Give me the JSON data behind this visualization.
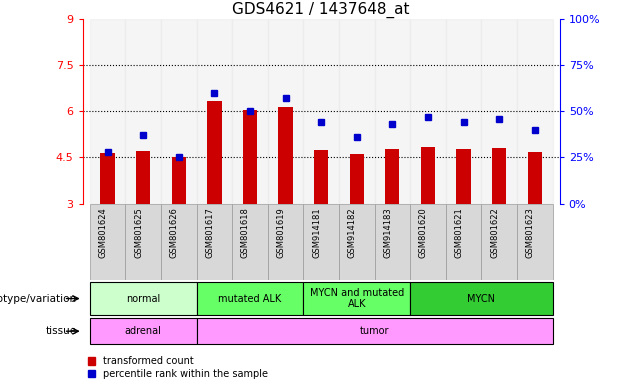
{
  "title": "GDS4621 / 1437648_at",
  "samples": [
    "GSM801624",
    "GSM801625",
    "GSM801626",
    "GSM801617",
    "GSM801618",
    "GSM801619",
    "GSM914181",
    "GSM914182",
    "GSM914183",
    "GSM801620",
    "GSM801621",
    "GSM801622",
    "GSM801623"
  ],
  "bar_values": [
    4.65,
    4.72,
    4.52,
    6.35,
    6.05,
    6.15,
    4.75,
    4.62,
    4.78,
    4.85,
    4.78,
    4.82,
    4.68
  ],
  "percentile_values": [
    28,
    37,
    25,
    60,
    50,
    57,
    44,
    36,
    43,
    47,
    44,
    46,
    40
  ],
  "bar_bottom": 3.0,
  "ylim_left": [
    3.0,
    9.0
  ],
  "ylim_right": [
    0,
    100
  ],
  "yticks_left": [
    3.0,
    4.5,
    6.0,
    7.5,
    9.0
  ],
  "yticks_right": [
    0,
    25,
    50,
    75,
    100
  ],
  "ytick_labels_left": [
    "3",
    "4.5",
    "6",
    "7.5",
    "9"
  ],
  "ytick_labels_right": [
    "0%",
    "25%",
    "50%",
    "75%",
    "100%"
  ],
  "hlines": [
    4.5,
    6.0,
    7.5
  ],
  "bar_color": "#cc0000",
  "marker_color": "#0000cc",
  "genotype_groups": [
    {
      "label": "normal",
      "start": 0,
      "end": 3,
      "color": "#ccffcc"
    },
    {
      "label": "mutated ALK",
      "start": 3,
      "end": 6,
      "color": "#66ff66"
    },
    {
      "label": "MYCN and mutated\nALK",
      "start": 6,
      "end": 9,
      "color": "#66ff66"
    },
    {
      "label": "MYCN",
      "start": 9,
      "end": 13,
      "color": "#33cc33"
    }
  ],
  "tissue_groups": [
    {
      "label": "adrenal",
      "start": 0,
      "end": 3,
      "color": "#ff99ff"
    },
    {
      "label": "tumor",
      "start": 3,
      "end": 13,
      "color": "#ff99ff"
    }
  ],
  "legend_items": [
    {
      "color": "#cc0000",
      "label": "transformed count"
    },
    {
      "color": "#0000cc",
      "label": "percentile rank within the sample"
    }
  ],
  "bar_width": 0.4,
  "tick_fontsize": 8,
  "title_fontsize": 11,
  "label_fontsize": 7
}
